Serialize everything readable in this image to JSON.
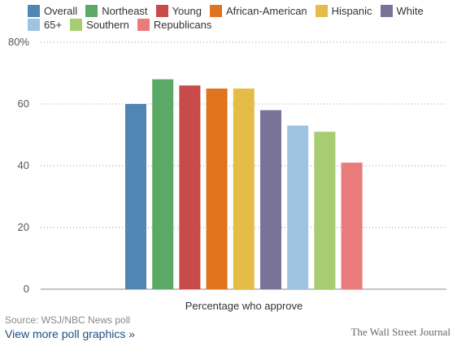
{
  "chart_data": {
    "type": "bar",
    "title": "",
    "xlabel": "Percentage who approve",
    "ylabel": "",
    "ylim": [
      0,
      80
    ],
    "yticks": [
      0,
      20,
      40,
      60,
      80
    ],
    "ytick_labels": [
      "0",
      "20",
      "40",
      "60",
      "80%"
    ],
    "grid": true,
    "legend_position": "top",
    "series": [
      {
        "name": "Overall",
        "value": 60,
        "color": "#4f86b4"
      },
      {
        "name": "Northeast",
        "value": 68,
        "color": "#5aaa66"
      },
      {
        "name": "Young",
        "value": 66,
        "color": "#c84a49"
      },
      {
        "name": "African-American",
        "value": 65,
        "color": "#e0731e"
      },
      {
        "name": "Hispanic",
        "value": 65,
        "color": "#e6bc48"
      },
      {
        "name": "White",
        "value": 58,
        "color": "#7b7298"
      },
      {
        "name": "65+",
        "value": 53,
        "color": "#9ec4e2"
      },
      {
        "name": "Southern",
        "value": 51,
        "color": "#a6cd71"
      },
      {
        "name": "Republicans",
        "value": 41,
        "color": "#ea7b7b"
      }
    ]
  },
  "footer": {
    "source": "Source: WSJ/NBC News poll",
    "more_link": "View more poll graphics »",
    "brand": "The Wall Street Journal"
  }
}
